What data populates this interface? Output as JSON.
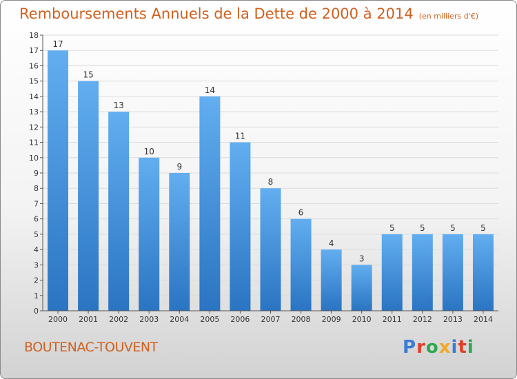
{
  "header": {
    "title": "Remboursements Annuels de la Dette de 2000 à 2014",
    "unit": "(en milliers d'€)"
  },
  "footer": {
    "commune": "BOUTENAC-TOUVENT",
    "logo_text": "Proxiti",
    "logo_colors": [
      "#3a7bd5",
      "#e0402a",
      "#2fa84f",
      "#f5a623",
      "#3a7bd5",
      "#e0402a",
      "#2fa84f"
    ]
  },
  "chart_data": {
    "type": "bar",
    "title": "Remboursements Annuels de la Dette de 2000 à 2014",
    "subtitle": "(en milliers d'€)",
    "categories": [
      "2000",
      "2001",
      "2002",
      "2003",
      "2004",
      "2005",
      "2006",
      "2007",
      "2008",
      "2009",
      "2010",
      "2011",
      "2012",
      "2013",
      "2014"
    ],
    "values": [
      17,
      15,
      13,
      10,
      9,
      14,
      11,
      8,
      6,
      4,
      3,
      5,
      5,
      5,
      5
    ],
    "ylim": [
      0,
      18
    ],
    "yticks": [
      0,
      1,
      2,
      3,
      4,
      5,
      6,
      7,
      8,
      9,
      10,
      11,
      12,
      13,
      14,
      15,
      16,
      17,
      18
    ],
    "grid": true,
    "bar_color": "#4b9be0",
    "xlabel": "",
    "ylabel": ""
  }
}
